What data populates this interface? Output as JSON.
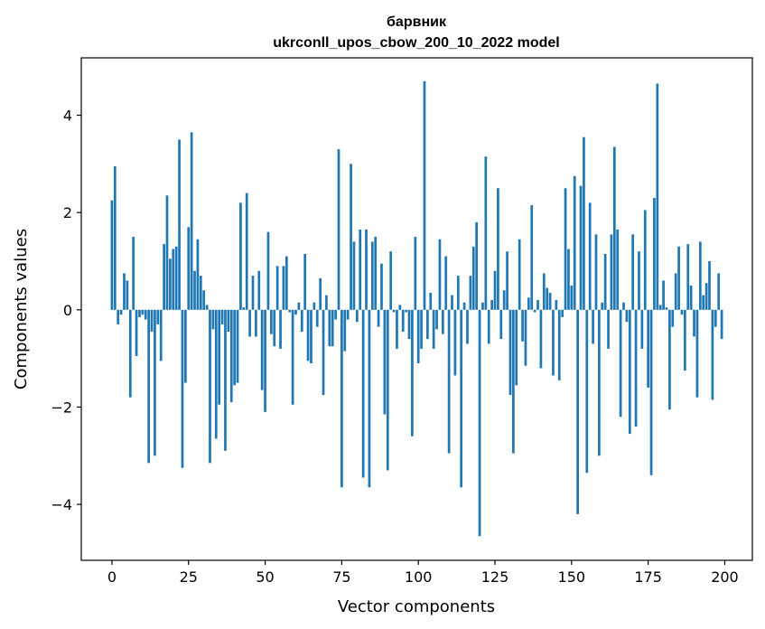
{
  "chart_data": {
    "type": "bar",
    "title_line1": "барвник",
    "title_line2": "ukrconll_upos_cbow_200_10_2022 model",
    "xlabel": "Vector components",
    "ylabel": "Components values",
    "xlim": [
      -10,
      209
    ],
    "ylim": [
      -5.15,
      5.18
    ],
    "x_ticks": [
      0,
      25,
      50,
      75,
      100,
      125,
      150,
      175,
      200
    ],
    "y_ticks": [
      -4,
      -2,
      0,
      2,
      4
    ],
    "y_tick_labels": [
      "−4",
      "−2",
      "0",
      "2",
      "4"
    ],
    "grid": false,
    "bar_color": "#1f77b4",
    "values": [
      2.25,
      2.95,
      -0.3,
      -0.1,
      0.75,
      0.6,
      -1.8,
      1.5,
      -0.95,
      -0.15,
      -0.1,
      -0.2,
      -3.15,
      -0.45,
      -3.0,
      -0.3,
      -1.05,
      1.35,
      2.35,
      1.05,
      1.25,
      1.3,
      3.5,
      -3.25,
      -1.5,
      1.7,
      3.65,
      0.8,
      1.45,
      0.7,
      0.4,
      0.1,
      -3.15,
      -0.4,
      -2.65,
      -1.95,
      -0.3,
      -2.9,
      -0.45,
      -1.9,
      -1.55,
      -1.5,
      2.2,
      0.05,
      2.4,
      -0.55,
      0.7,
      -0.55,
      0.8,
      -1.65,
      -2.1,
      1.6,
      -0.5,
      -0.75,
      0.9,
      -0.8,
      0.9,
      1.1,
      -0.05,
      -1.95,
      -0.1,
      0.15,
      -0.45,
      1.15,
      -1.05,
      -1.1,
      0.15,
      -0.35,
      0.65,
      -1.75,
      0.3,
      -0.75,
      -0.75,
      -0.2,
      3.3,
      -3.65,
      -0.85,
      -0.2,
      3.0,
      1.4,
      -0.25,
      1.65,
      -3.45,
      1.65,
      -3.65,
      1.4,
      1.5,
      -0.35,
      0.95,
      -2.15,
      -3.3,
      1.2,
      -0.05,
      -0.8,
      0.1,
      -0.45,
      -0.05,
      -0.6,
      -2.6,
      1.5,
      -1.1,
      -0.8,
      4.7,
      -0.6,
      0.35,
      -0.8,
      -0.4,
      1.45,
      -0.5,
      1.1,
      -2.95,
      0.3,
      -1.35,
      0.7,
      -3.65,
      0.15,
      -0.7,
      0.7,
      1.3,
      1.8,
      -4.65,
      0.15,
      3.15,
      -0.7,
      0.2,
      0.8,
      2.5,
      -0.6,
      0.4,
      1.2,
      -1.75,
      -2.95,
      -1.55,
      1.45,
      -0.65,
      -1.15,
      0.25,
      2.15,
      -0.05,
      0.2,
      -1.2,
      0.75,
      0.45,
      0.35,
      -1.35,
      0.2,
      -1.45,
      -0.15,
      2.5,
      1.25,
      0.5,
      2.75,
      -4.2,
      2.55,
      3.55,
      -3.35,
      2.2,
      -0.7,
      1.55,
      -3.0,
      0.15,
      1.15,
      -0.8,
      1.55,
      3.35,
      1.65,
      -2.2,
      0.15,
      -0.25,
      -2.55,
      1.55,
      -2.4,
      1.2,
      -0.8,
      2.05,
      -1.6,
      -3.4,
      2.3,
      4.65,
      0.1,
      0.6,
      0.05,
      -2.05,
      -0.35,
      0.75,
      1.3,
      -0.1,
      -1.25,
      1.35,
      0.5,
      -0.55,
      -1.8,
      1.4,
      0.3,
      0.55,
      1.0,
      -1.85,
      -0.35,
      0.75,
      -0.6
    ]
  }
}
